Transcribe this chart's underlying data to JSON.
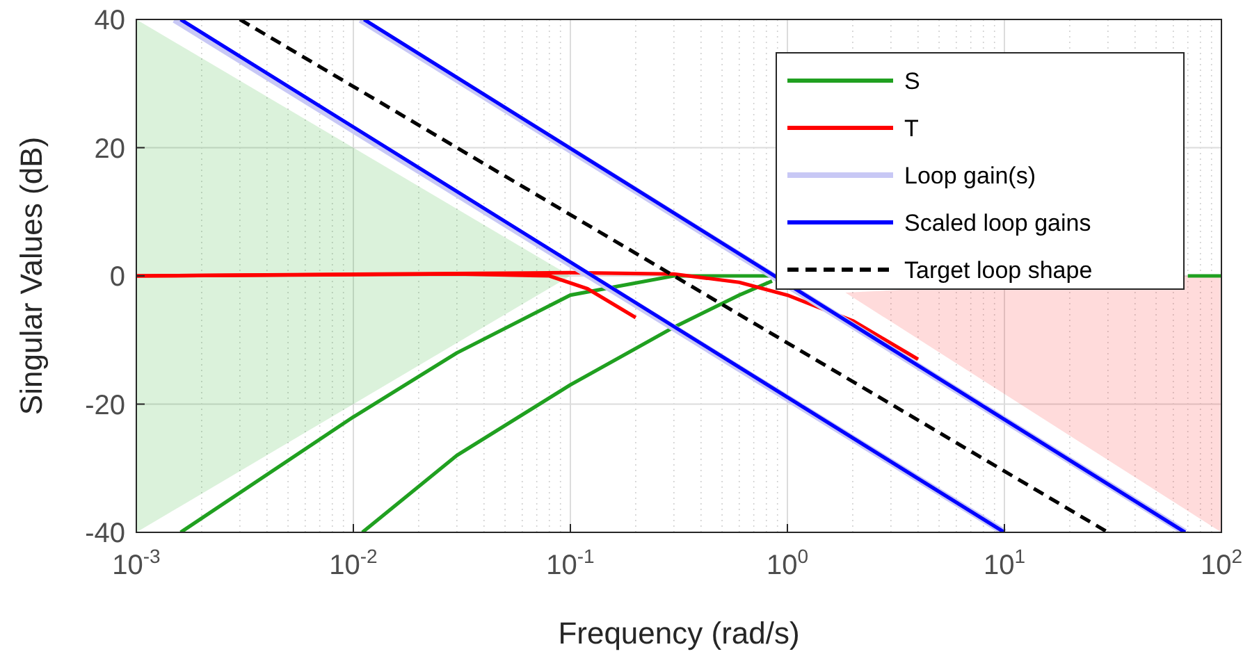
{
  "chart_data": {
    "type": "line",
    "xlabel": "Frequency (rad/s)",
    "ylabel": "Singular Values (dB)",
    "log": "x",
    "grid": true,
    "legend": "top right",
    "xlim": [
      0.001,
      100
    ],
    "ylim": [
      -40,
      40
    ],
    "xticks": [
      {
        "value": 0.001,
        "label": "10$^{-3}$"
      },
      {
        "value": 0.01,
        "label": "10$^{-2}$"
      },
      {
        "value": 0.1,
        "label": "10$^{-1}$"
      },
      {
        "value": 1,
        "label": "10$^{0}$"
      },
      {
        "value": 10,
        "label": "10$^{1}$"
      },
      {
        "value": 100,
        "label": "10$^{2}$"
      }
    ],
    "yticks": [
      -40,
      -20,
      0,
      20,
      40
    ],
    "series": [
      {
        "type": "area",
        "color": "#00a000",
        "x": [
          0.001,
          0.1,
          0.001
        ],
        "values": [
          40,
          0,
          -40
        ]
      },
      {
        "type": "area",
        "color": "#ff0000",
        "x": [
          1.85,
          70,
          100,
          100
        ],
        "values": [
          -2.6,
          0,
          0,
          -40
        ]
      },
      {
        "name": "S",
        "color": "#20a020",
        "x": [
          0.0016,
          0.01,
          0.03,
          0.1,
          0.3,
          0.85,
          null,
          70,
          100
        ],
        "values": [
          -40,
          -22,
          -12,
          -3,
          0,
          0,
          null,
          0,
          0
        ]
      },
      {
        "color": "#20a020",
        "x": [
          0.011,
          0.03,
          0.1,
          0.3,
          0.6,
          0.85
        ],
        "values": [
          -40,
          -28,
          -17,
          -8,
          -3,
          -0.8
        ]
      },
      {
        "name": "T",
        "color": "#ff0000",
        "x": [
          0.001,
          0.03,
          0.08,
          0.12,
          0.2
        ],
        "values": [
          0,
          0.3,
          0,
          -2,
          -6.5
        ]
      },
      {
        "color": "#ff0000",
        "x": [
          0.001,
          0.1,
          0.3,
          0.6,
          1,
          2,
          4
        ],
        "values": [
          0,
          0.5,
          0.3,
          -1,
          -3,
          -7,
          -13
        ]
      },
      {
        "name": "Loop gain(s)",
        "color": "#c8c8f5",
        "x": [
          0.0015,
          10
        ],
        "values": [
          40,
          -40
        ]
      },
      {
        "color": "#c8c8f5",
        "x": [
          0.0108,
          68
        ],
        "values": [
          40,
          -40
        ]
      },
      {
        "name": "Scaled loop gains",
        "color": "#0000ff",
        "x": [
          0.0016,
          10
        ],
        "values": [
          40,
          -40
        ]
      },
      {
        "color": "#0000ff",
        "x": [
          0.0112,
          68
        ],
        "values": [
          40,
          -40
        ]
      },
      {
        "name": "Target loop shape",
        "color": "#000000",
        "line_style": "dashed",
        "x": [
          0.003,
          30
        ],
        "values": [
          40,
          -40
        ]
      }
    ]
  }
}
